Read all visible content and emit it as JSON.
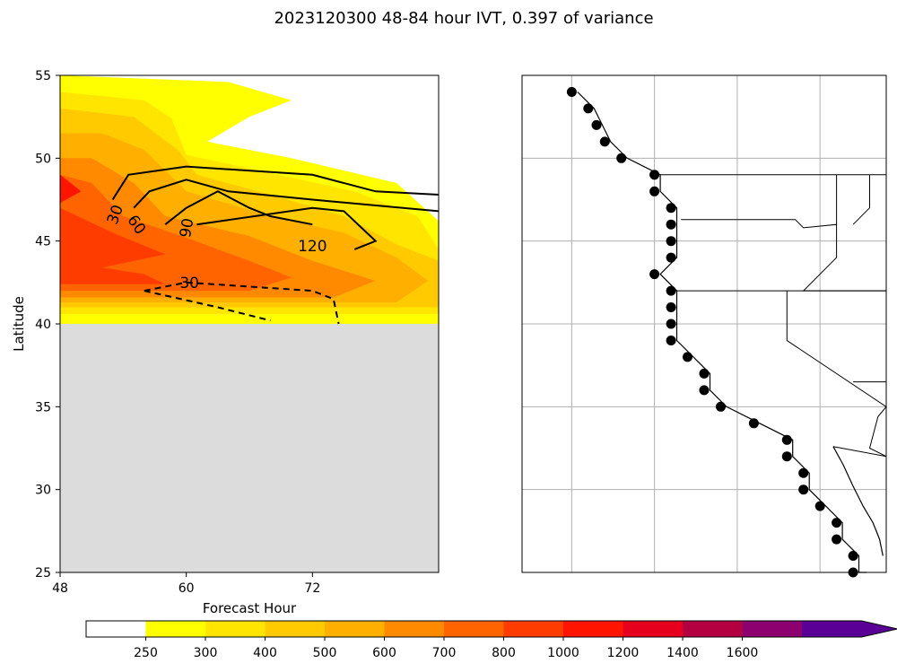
{
  "figure": {
    "title": "2023120300 48-84 hour IVT, 0.397 of variance"
  },
  "chart_data": [
    {
      "type": "heatmap",
      "panel": "left",
      "xlabel": "Forecast Hour",
      "ylabel": "Latitude",
      "xlim": [
        48,
        84
      ],
      "ylim": [
        25,
        55
      ],
      "xticks": [
        48,
        60,
        72
      ],
      "yticks": [
        25,
        30,
        35,
        40,
        45,
        50,
        55
      ],
      "missing_region": {
        "lat_below": 40,
        "color": "#dcdcdc"
      },
      "filled_contours_ivt": [
        {
          "level": 250,
          "color": "#ffff00",
          "poly": [
            [
              48,
              40
            ],
            [
              84,
              40
            ],
            [
              84,
              46.2
            ],
            [
              80,
              48.5
            ],
            [
              70,
              50
            ],
            [
              62,
              51
            ],
            [
              66,
              52.5
            ],
            [
              70,
              53.5
            ],
            [
              64,
              54.6
            ],
            [
              48,
              55
            ]
          ]
        },
        {
          "level": 300,
          "color": "#ffe500",
          "poly": [
            [
              48,
              40.6
            ],
            [
              84,
              40.6
            ],
            [
              84,
              44.5
            ],
            [
              82,
              46.5
            ],
            [
              76,
              48
            ],
            [
              68,
              49.1
            ],
            [
              60,
              50.2
            ],
            [
              58.6,
              52.4
            ],
            [
              56,
              53.5
            ],
            [
              48,
              54
            ]
          ]
        },
        {
          "level": 400,
          "color": "#ffca00",
          "poly": [
            [
              48,
              41
            ],
            [
              84,
              41
            ],
            [
              84,
              43.8
            ],
            [
              80,
              44.8
            ],
            [
              75,
              46.5
            ],
            [
              68,
              47.8
            ],
            [
              61,
              49
            ],
            [
              59.2,
              50.5
            ],
            [
              55,
              52.5
            ],
            [
              48,
              53
            ]
          ]
        },
        {
          "level": 500,
          "color": "#ffaf00",
          "poly": [
            [
              48,
              41.3
            ],
            [
              80,
              41.3
            ],
            [
              83,
              42.6
            ],
            [
              80,
              44
            ],
            [
              75,
              45.5
            ],
            [
              68,
              46.5
            ],
            [
              60,
              48
            ],
            [
              56,
              50.5
            ],
            [
              52,
              51.5
            ],
            [
              48,
              51.5
            ]
          ]
        },
        {
          "level": 600,
          "color": "#ff8a00",
          "poly": [
            [
              48,
              41.6
            ],
            [
              74,
              41.6
            ],
            [
              78,
              42.6
            ],
            [
              72,
              43.8
            ],
            [
              66,
              45.3
            ],
            [
              58,
              46.5
            ],
            [
              55,
              48.5
            ],
            [
              51,
              50
            ],
            [
              48,
              50
            ]
          ]
        },
        {
          "level": 700,
          "color": "#ff6400",
          "poly": [
            [
              48,
              42
            ],
            [
              66,
              42
            ],
            [
              70,
              42.8
            ],
            [
              66,
              43.8
            ],
            [
              60,
              45.2
            ],
            [
              54,
              46.5
            ],
            [
              51,
              48.5
            ],
            [
              48,
              49
            ]
          ]
        },
        {
          "level": 800,
          "color": "#ff3c00",
          "poly": [
            [
              48,
              42.4
            ],
            [
              58,
              42.4
            ],
            [
              56,
              43
            ],
            [
              52,
              43.4
            ],
            [
              58,
              44.2
            ],
            [
              53,
              45.5
            ],
            [
              48,
              47
            ]
          ]
        },
        {
          "level": 1000,
          "color": "#ff1400",
          "poly": [
            [
              48,
              47.3
            ],
            [
              50,
              48
            ],
            [
              48,
              49
            ]
          ]
        }
      ],
      "contour_lines": [
        {
          "level": 30,
          "style": "solid",
          "points": [
            [
              53,
              47.5
            ],
            [
              54.5,
              49
            ],
            [
              60,
              49.5
            ],
            [
              72,
              49
            ],
            [
              78,
              48
            ],
            [
              84,
              47.8
            ]
          ]
        },
        {
          "level": 60,
          "style": "solid",
          "points": [
            [
              55,
              47
            ],
            [
              56.5,
              48
            ],
            [
              60,
              48.7
            ],
            [
              64,
              48
            ],
            [
              72,
              47.5
            ],
            [
              84,
              46.8
            ]
          ]
        },
        {
          "level": 90,
          "style": "solid",
          "points": [
            [
              58,
              46
            ],
            [
              60,
              47
            ],
            [
              63,
              48
            ],
            [
              66,
              47
            ],
            [
              68,
              46.5
            ],
            [
              72,
              46
            ]
          ]
        },
        {
          "level": 120,
          "style": "solid",
          "points": [
            [
              61,
              46
            ],
            [
              72,
              47
            ],
            [
              75,
              46.8
            ],
            [
              78,
              45
            ],
            [
              76,
              44.5
            ]
          ]
        },
        {
          "level": 30,
          "style": "dashed",
          "points": [
            [
              56,
              42
            ],
            [
              60,
              42.5
            ],
            [
              72,
              42
            ],
            [
              74,
              41.5
            ],
            [
              74.5,
              40
            ]
          ]
        },
        {
          "level": 30,
          "style": "dashed",
          "points": [
            [
              56,
              42
            ],
            [
              63,
              41
            ],
            [
              68,
              40.2
            ]
          ]
        }
      ],
      "contour_labels": [
        {
          "text": "30",
          "x": 53.2,
          "y": 46.6,
          "rotate": -70
        },
        {
          "text": "60",
          "x": 55.3,
          "y": 46.0,
          "rotate": 55
        },
        {
          "text": "90",
          "x": 60.0,
          "y": 45.8,
          "rotate": -80
        },
        {
          "text": "120",
          "x": 72.0,
          "y": 44.7,
          "rotate": 0
        },
        {
          "text": "30",
          "x": 60.3,
          "y": 42.5,
          "rotate": 0
        }
      ]
    },
    {
      "type": "scatter",
      "panel": "right",
      "description_colors": {
        "marker": "#000000",
        "gridline": "#b0b0b0"
      },
      "grid": true,
      "lon_range": [
        -136,
        -114
      ],
      "lat_range": [
        25,
        55
      ],
      "gridlines_lon": [
        -133,
        -128,
        -123,
        -118
      ],
      "gridlines_lat": [
        30,
        35,
        40,
        45,
        50
      ],
      "markers": [
        [
          -133,
          54
        ],
        [
          -132,
          53
        ],
        [
          -131.5,
          52
        ],
        [
          -131,
          51
        ],
        [
          -130,
          50
        ],
        [
          -128,
          49
        ],
        [
          -128,
          48
        ],
        [
          -127,
          47
        ],
        [
          -127,
          46
        ],
        [
          -127,
          45
        ],
        [
          -127,
          44
        ],
        [
          -128,
          43
        ],
        [
          -127,
          42
        ],
        [
          -127,
          41
        ],
        [
          -127,
          40
        ],
        [
          -127,
          39
        ],
        [
          -126,
          38
        ],
        [
          -125,
          37
        ],
        [
          -125,
          36
        ],
        [
          -124,
          35
        ],
        [
          -122,
          34
        ],
        [
          -120,
          33
        ],
        [
          -120,
          32
        ],
        [
          -119,
          31
        ],
        [
          -119,
          30
        ],
        [
          -118,
          29
        ],
        [
          -117,
          28
        ],
        [
          -117,
          27
        ],
        [
          -116,
          26
        ],
        [
          -116,
          25
        ]
      ],
      "state_borders": [
        [
          [
            -128.3,
            49
          ],
          [
            -114,
            49
          ]
        ],
        [
          [
            -126.4,
            46.3
          ],
          [
            -119.5,
            46.3
          ],
          [
            -119,
            45.8
          ],
          [
            -117,
            46
          ],
          [
            -117,
            44
          ],
          [
            -119,
            42
          ],
          [
            -114,
            42
          ]
        ],
        [
          [
            -117,
            49
          ],
          [
            -117,
            46
          ]
        ],
        [
          [
            -115,
            49
          ],
          [
            -115,
            47
          ],
          [
            -116,
            46
          ]
        ],
        [
          [
            -127,
            42
          ],
          [
            -114,
            42
          ]
        ],
        [
          [
            -120,
            42
          ],
          [
            -120,
            39
          ],
          [
            -114,
            35
          ],
          [
            -114.5,
            34.4
          ],
          [
            -115,
            32.5
          ],
          [
            -114,
            32
          ]
        ],
        [
          [
            -114,
            36.5
          ],
          [
            -116,
            36.5
          ]
        ],
        [
          [
            -117.2,
            32.6
          ],
          [
            -114,
            32
          ]
        ]
      ]
    },
    {
      "type": "colorbar",
      "panel": "bottom",
      "levels": [
        250,
        300,
        400,
        500,
        600,
        700,
        800,
        1000,
        1200,
        1400,
        1600
      ],
      "tick_labels": [
        "250",
        "300",
        "400",
        "500",
        "600",
        "700",
        "800",
        "1000",
        "1200",
        "1400",
        "1600"
      ],
      "colors": [
        "#ffffff",
        "#ffff00",
        "#ffe500",
        "#ffca00",
        "#ffaf00",
        "#ff8a00",
        "#ff6400",
        "#ff3c00",
        "#ff1400",
        "#e6001e",
        "#b40040",
        "#8c0070",
        "#5a0096"
      ],
      "extend": "max"
    }
  ]
}
